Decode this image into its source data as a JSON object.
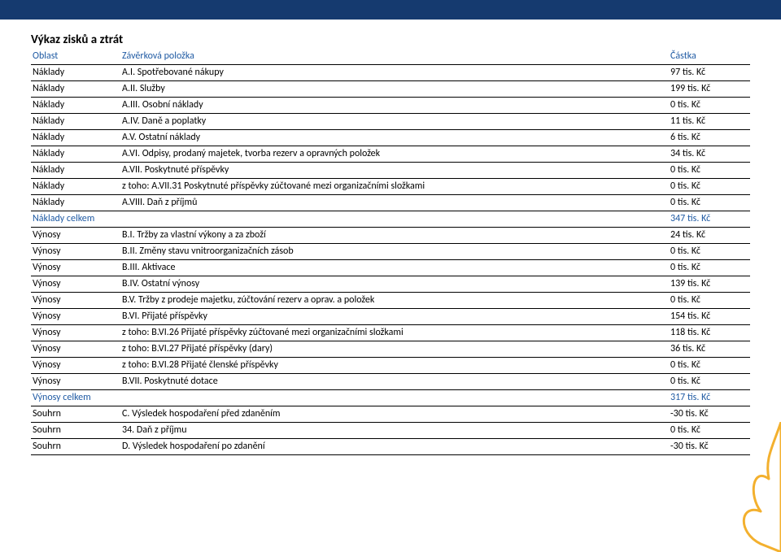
{
  "title": "Výkaz zisků a ztrát",
  "headers": {
    "c1": "Oblast",
    "c2": "Závěrková položka",
    "c3": "Částka"
  },
  "header_color": "#1f5aa3",
  "border_color": "#000000",
  "band_color": "#153a6f",
  "flame_color": "#f3b02e",
  "columns": {
    "c1_width": 110,
    "c3_width": 100
  },
  "font_size": 12,
  "title_fontsize": 15,
  "rows": [
    {
      "c1": "Náklady",
      "c2": "A.I. Spotřebované nákupy",
      "c3": "97 tis. Kč",
      "highlight": false
    },
    {
      "c1": "Náklady",
      "c2": "A.II. Služby",
      "c3": "199 tis. Kč",
      "highlight": false
    },
    {
      "c1": "Náklady",
      "c2": "A.III. Osobní náklady",
      "c3": "0 tis. Kč",
      "highlight": false
    },
    {
      "c1": "Náklady",
      "c2": "A.IV. Daně a poplatky",
      "c3": "11 tis. Kč",
      "highlight": false
    },
    {
      "c1": "Náklady",
      "c2": "A.V. Ostatní náklady",
      "c3": "6 tis. Kč",
      "highlight": false
    },
    {
      "c1": "Náklady",
      "c2": "A.VI. Odpisy, prodaný majetek, tvorba rezerv a opravných položek",
      "c3": "34 tis. Kč",
      "highlight": false
    },
    {
      "c1": "Náklady",
      "c2": "A.VII. Poskytnuté příspěvky",
      "c3": "0 tis. Kč",
      "highlight": false
    },
    {
      "c1": "Náklady",
      "c2": "z toho: A.VII.31 Poskytnuté příspěvky zúčtované mezi organizačními složkami",
      "c3": "0 tis. Kč",
      "highlight": false
    },
    {
      "c1": "Náklady",
      "c2": "A.VIII. Daň z příjmů",
      "c3": "0 tis. Kč",
      "highlight": false
    },
    {
      "c1": "Náklady celkem",
      "c2": "",
      "c3": "347 tis. Kč",
      "highlight": true
    },
    {
      "c1": "Výnosy",
      "c2": "B.I. Tržby za vlastní výkony a za zboží",
      "c3": "24 tis. Kč",
      "highlight": false
    },
    {
      "c1": "Výnosy",
      "c2": "B.II. Změny stavu vnitroorganizačních zásob",
      "c3": "0 tis. Kč",
      "highlight": false
    },
    {
      "c1": "Výnosy",
      "c2": "B.III. Aktivace",
      "c3": "0 tis. Kč",
      "highlight": false
    },
    {
      "c1": "Výnosy",
      "c2": "B.IV. Ostatní výnosy",
      "c3": "139 tis. Kč",
      "highlight": false
    },
    {
      "c1": "Výnosy",
      "c2": "B.V. Tržby z prodeje majetku, zúčtování rezerv a oprav. a položek",
      "c3": "0 tis. Kč",
      "highlight": false
    },
    {
      "c1": "Výnosy",
      "c2": "B.VI. Přijaté příspěvky",
      "c3": "154 tis. Kč",
      "highlight": false
    },
    {
      "c1": "Výnosy",
      "c2": "z toho: B.VI.26 Přijaté příspěvky zúčtované mezi organizačními složkami",
      "c3": "118 tis. Kč",
      "highlight": false
    },
    {
      "c1": "Výnosy",
      "c2": "z toho: B.VI.27 Přijaté příspěvky (dary)",
      "c3": "36 tis. Kč",
      "highlight": false
    },
    {
      "c1": "Výnosy",
      "c2": "z toho: B.VI.28 Přijaté členské příspěvky",
      "c3": "0 tis. Kč",
      "highlight": false
    },
    {
      "c1": "Výnosy",
      "c2": "B.VII. Poskytnuté dotace",
      "c3": "0 tis. Kč",
      "highlight": false
    },
    {
      "c1": "Výnosy celkem",
      "c2": "",
      "c3": "317 tis. Kč",
      "highlight": true
    },
    {
      "c1": "Souhrn",
      "c2": "C. Výsledek hospodaření před zdaněním",
      "c3": "-30 tis. Kč",
      "highlight": false
    },
    {
      "c1": "Souhrn",
      "c2": "34. Daň z příjmu",
      "c3": "0 tis. Kč",
      "highlight": false
    },
    {
      "c1": "Souhrn",
      "c2": "D. Výsledek hospodaření po zdanění",
      "c3": "-30 tis. Kč",
      "highlight": false
    }
  ]
}
